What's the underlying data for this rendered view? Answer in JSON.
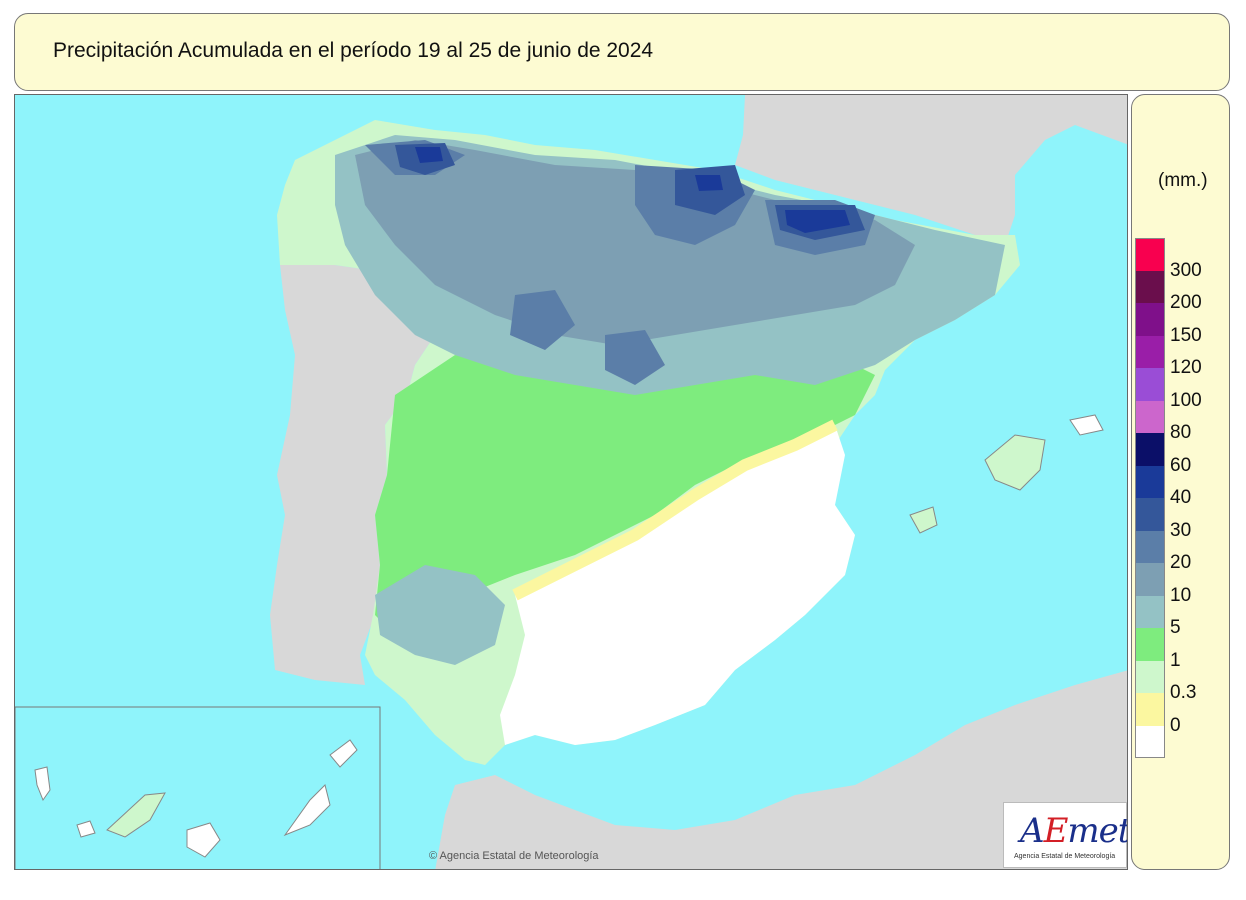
{
  "title": "Precipitación Acumulada en el período 19 al 25 de junio de 2024",
  "legend": {
    "unit": "(mm.)",
    "classes": [
      {
        "label": "",
        "color": "#f8004f"
      },
      {
        "label": "300",
        "color": "#6a0e4c"
      },
      {
        "label": "200",
        "color": "#7f108a"
      },
      {
        "label": "150",
        "color": "#9a1ea8"
      },
      {
        "label": "120",
        "color": "#9a4dd6"
      },
      {
        "label": "100",
        "color": "#cc66cc"
      },
      {
        "label": "80",
        "color": "#0b0f68"
      },
      {
        "label": "60",
        "color": "#1a3a99"
      },
      {
        "label": "40",
        "color": "#34579a"
      },
      {
        "label": "30",
        "color": "#5b7ea8"
      },
      {
        "label": "20",
        "color": "#7d9fb3"
      },
      {
        "label": "10",
        "color": "#94c2c5"
      },
      {
        "label": "5",
        "color": "#7eec7e"
      },
      {
        "label": "1",
        "color": "#cef7cc"
      },
      {
        "label": "0.3",
        "color": "#fbf7a0"
      },
      {
        "label": "0",
        "color": "#ffffff"
      }
    ]
  },
  "copyright": "© Agencia Estatal de Meteorología",
  "logo": {
    "text_a": "A",
    "text_e": "E",
    "text_rest": "met",
    "subtitle": "Agencia Estatal de Meteorología"
  },
  "colors": {
    "sea": "#8ff4fb",
    "land_other": "#d8d8d8",
    "panel": "#fdfbd2"
  }
}
